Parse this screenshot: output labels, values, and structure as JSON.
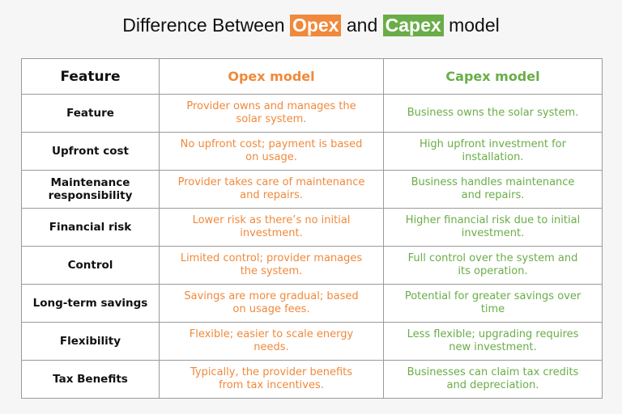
{
  "title": {
    "before": "Difference Between",
    "opex": "Opex",
    "middle": "and",
    "capex": "Capex",
    "after": "model"
  },
  "table": {
    "header": [
      "Feature",
      "Opex model",
      "Capex model"
    ],
    "rows": [
      [
        "Feature",
        "Provider owns and manages the solar system.",
        "Business owns the solar system."
      ],
      [
        "Upfront cost",
        "No upfront cost; payment is based on usage.",
        "High upfront investment for installation."
      ],
      [
        "Maintenance responsibility",
        "Provider takes care of maintenance and repairs.",
        "Business handles maintenance and repairs."
      ],
      [
        "Financial risk",
        "Lower risk as there’s no initial investment.",
        "Higher financial risk due to initial investment."
      ],
      [
        "Control",
        "Limited control; provider manages the system.",
        "Full control over the system and its operation."
      ],
      [
        "Long-term savings",
        "Savings are more gradual; based on usage fees.",
        "Potential for greater savings over time"
      ],
      [
        "Flexibility",
        "Flexible; easier to scale energy needs.",
        "Less flexible; upgrading requires new investment."
      ],
      [
        "Tax Benefits",
        "Typically, the provider benefits from tax incentives.",
        "Businesses can claim tax credits and depreciation."
      ]
    ]
  }
}
